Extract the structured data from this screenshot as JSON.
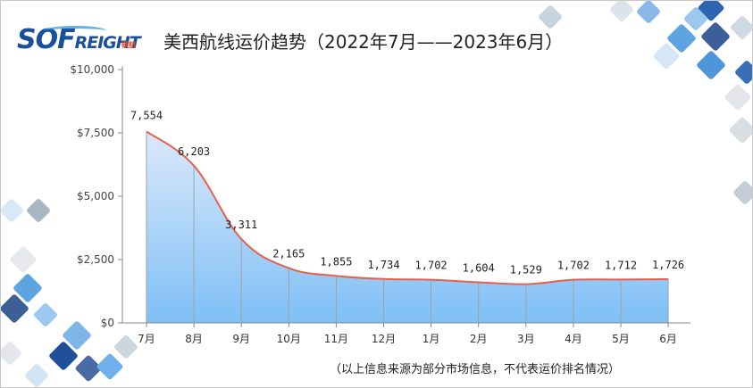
{
  "title": "美西航线运价趋势（2022年7月——2023年6月）",
  "logo": {
    "main": "SOF",
    "rest": "REIGHT",
    "sub": "硕航"
  },
  "footnote": "（以上信息来源为部分市场信息，不代表运价排名情况）",
  "colors": {
    "line": "#e8604c",
    "area_top": "#dbe9fb",
    "area_bottom": "#7fbff5",
    "axis": "#888888",
    "logo": "#1a4f9c"
  },
  "chart_data": {
    "type": "area",
    "title": "美西航线运价趋势（2022年7月——2023年6月）",
    "categories": [
      "7月",
      "8月",
      "9月",
      "10月",
      "11月",
      "12月",
      "1月",
      "2月",
      "3月",
      "4月",
      "5月",
      "6月"
    ],
    "values": [
      7554,
      6203,
      3311,
      2165,
      1855,
      1734,
      1702,
      1604,
      1529,
      1702,
      1712,
      1726
    ],
    "data_labels": [
      "7,554",
      "6,203",
      "3,311",
      "2,165",
      "1,855",
      "1,734",
      "1,702",
      "1,604",
      "1,529",
      "1,702",
      "1,712",
      "1,726"
    ],
    "y_ticks": [
      0,
      2500,
      5000,
      7500,
      10000
    ],
    "y_tick_labels": [
      "$0",
      "$2,500",
      "$5,000",
      "$7,500",
      "$10,000"
    ],
    "ylim": [
      0,
      10000
    ],
    "xlabel": "",
    "ylabel": "",
    "grid": false,
    "legend": "none"
  }
}
